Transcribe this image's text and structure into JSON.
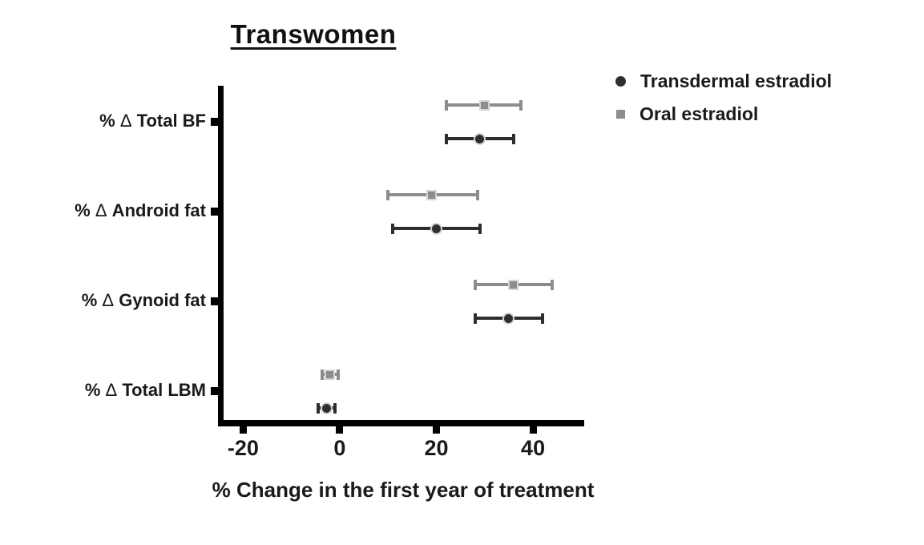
{
  "figure": {
    "title": "Transwomen",
    "xlabel": "% Change in the first year of treatment"
  },
  "colors": {
    "transdermal": "#2e2e2e",
    "oral": "#8d8d8d",
    "axis": "#000000",
    "text": "#1a1a1a",
    "marker_halo": "#d4d4d4"
  },
  "chart_data": {
    "type": "scatter",
    "subtype": "horizontal-dot-plot-with-error-bars",
    "title": "Transwomen",
    "xlabel": "% Change in the first year of treatment",
    "ylabel": "",
    "categories": [
      "% Δ Total BF",
      "% Δ Android fat",
      "% Δ Gynoid fat",
      "% Δ Total LBM"
    ],
    "x_ticks": [
      "-20",
      "0",
      "20",
      "40"
    ],
    "x_tick_values": [
      -20,
      0,
      20,
      40
    ],
    "xlim": [
      -25.2,
      50.6
    ],
    "grid": false,
    "legend_position": "top-right",
    "series": [
      {
        "name": "Transdermal estradiol",
        "marker": "circle",
        "color": "#2e2e2e",
        "points": [
          {
            "category": "% Δ Total BF",
            "mean": 29,
            "lo": 22,
            "hi": 36
          },
          {
            "category": "% Δ Android fat",
            "mean": 20,
            "lo": 11,
            "hi": 29
          },
          {
            "category": "% Δ Gynoid fat",
            "mean": 35,
            "lo": 28,
            "hi": 42
          },
          {
            "category": "% Δ Total LBM",
            "mean": -2.8,
            "lo": -4.5,
            "hi": -1
          }
        ]
      },
      {
        "name": "Oral estradiol",
        "marker": "square",
        "color": "#8d8d8d",
        "points": [
          {
            "category": "% Δ Total BF",
            "mean": 30,
            "lo": 22,
            "hi": 37.5
          },
          {
            "category": "% Δ Android fat",
            "mean": 19,
            "lo": 10,
            "hi": 28.5
          },
          {
            "category": "% Δ Gynoid fat",
            "mean": 36,
            "lo": 28,
            "hi": 44
          },
          {
            "category": "% Δ Total LBM",
            "mean": -2,
            "lo": -3.7,
            "hi": -0.3
          }
        ]
      }
    ]
  }
}
